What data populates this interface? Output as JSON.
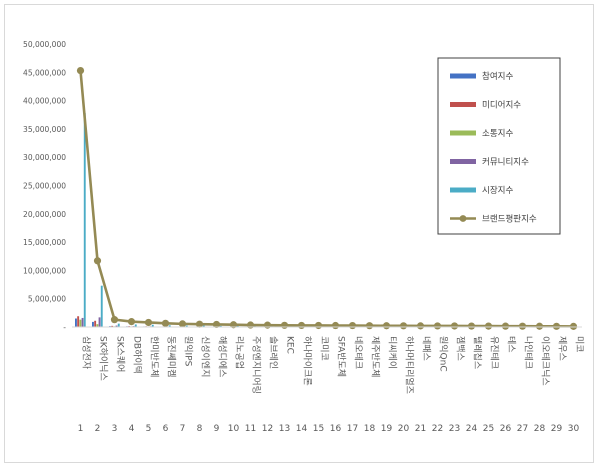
{
  "chart_data": {
    "type": "bar",
    "title": "",
    "xlabel": "",
    "ylabel": "",
    "ylim": [
      0,
      50000000
    ],
    "yticks": [
      "-",
      "5,000,000",
      "10,000,000",
      "15,000,000",
      "20,000,000",
      "25,000,000",
      "30,000,000",
      "35,000,000",
      "40,000,000",
      "45,000,000",
      "50,000,000"
    ],
    "grid": false,
    "legend_position": "right",
    "categories": [
      "삼성전자",
      "SK하이닉스",
      "SK스퀘어",
      "DB하이텍",
      "한미반도체",
      "동진쎄미켐",
      "원익IPS",
      "신성이엔지",
      "해성디에스",
      "리노공업",
      "주성엔지니어링",
      "솔브레인",
      "KEC",
      "하나마이크론",
      "코미코",
      "SFA반도체",
      "네오테크",
      "제주반도체",
      "티씨케이",
      "하나머티리얼즈",
      "네패스",
      "원익QnC",
      "젬백스",
      "텔레칩스",
      "유진테크",
      "테스",
      "나인테크",
      "이오테크닉스",
      "제우스",
      "미코"
    ],
    "ranks": [
      "1",
      "2",
      "3",
      "4",
      "5",
      "6",
      "7",
      "8",
      "9",
      "10",
      "11",
      "12",
      "13",
      "14",
      "15",
      "16",
      "17",
      "18",
      "19",
      "20",
      "21",
      "22",
      "23",
      "24",
      "25",
      "26",
      "27",
      "28",
      "29",
      "30"
    ],
    "series": [
      {
        "name": "참여지수",
        "kind": "bar",
        "color": "#4472c4",
        "values": [
          1500000,
          900000,
          150000,
          120000,
          100000,
          90000,
          80000,
          70000,
          60000,
          60000,
          55000,
          50000,
          45000,
          40000,
          40000,
          35000,
          35000,
          30000,
          30000,
          30000,
          25000,
          25000,
          25000,
          20000,
          20000,
          20000,
          20000,
          15000,
          15000,
          15000
        ]
      },
      {
        "name": "미디어지수",
        "kind": "bar",
        "color": "#c0504d",
        "values": [
          1900000,
          1100000,
          200000,
          150000,
          120000,
          100000,
          90000,
          80000,
          70000,
          65000,
          60000,
          55000,
          50000,
          45000,
          45000,
          40000,
          40000,
          35000,
          35000,
          35000,
          30000,
          30000,
          30000,
          25000,
          25000,
          25000,
          25000,
          20000,
          20000,
          20000
        ]
      },
      {
        "name": "소통지수",
        "kind": "bar",
        "color": "#9bbb59",
        "values": [
          1300000,
          500000,
          120000,
          100000,
          90000,
          80000,
          70000,
          60000,
          50000,
          50000,
          45000,
          40000,
          35000,
          35000,
          30000,
          30000,
          30000,
          25000,
          25000,
          25000,
          20000,
          20000,
          20000,
          20000,
          15000,
          15000,
          15000,
          15000,
          15000,
          10000
        ]
      },
      {
        "name": "커뮤니티지수",
        "kind": "bar",
        "color": "#8064a2",
        "values": [
          1600000,
          1700000,
          250000,
          150000,
          120000,
          100000,
          90000,
          80000,
          70000,
          60000,
          55000,
          50000,
          45000,
          45000,
          40000,
          40000,
          35000,
          35000,
          30000,
          30000,
          30000,
          25000,
          25000,
          25000,
          20000,
          20000,
          20000,
          20000,
          15000,
          15000
        ]
      },
      {
        "name": "시장지수",
        "kind": "bar",
        "color": "#4bacc6",
        "values": [
          37800000,
          7300000,
          600000,
          450000,
          400000,
          300000,
          250000,
          250000,
          200000,
          250000,
          180000,
          170000,
          150000,
          120000,
          110000,
          110000,
          100000,
          90000,
          90000,
          90000,
          80000,
          80000,
          70000,
          60000,
          60000,
          60000,
          50000,
          50000,
          40000,
          40000
        ]
      },
      {
        "name": "브랜드평판지수",
        "kind": "line",
        "color": "#948a54",
        "values": [
          45300000,
          11700000,
          1300000,
          950000,
          800000,
          650000,
          550000,
          500000,
          450000,
          400000,
          350000,
          330000,
          300000,
          280000,
          270000,
          260000,
          250000,
          230000,
          220000,
          210000,
          200000,
          190000,
          180000,
          170000,
          160000,
          150000,
          140000,
          130000,
          120000,
          110000
        ]
      }
    ]
  }
}
